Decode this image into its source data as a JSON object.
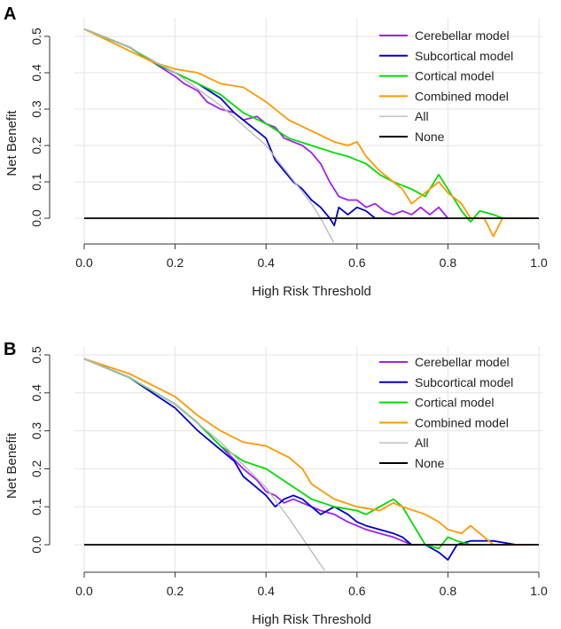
{
  "chart_data": [
    {
      "panel": "A",
      "type": "line",
      "title": "",
      "xlabel": "High Risk Threshold",
      "ylabel": "Net Benefit",
      "xlim": [
        0.0,
        1.0
      ],
      "ylim": [
        -0.07,
        0.52
      ],
      "xticks": [
        "0.0",
        "0.2",
        "0.4",
        "0.6",
        "0.8",
        "1.0"
      ],
      "yticks": [
        "0.0",
        "0.1",
        "0.2",
        "0.3",
        "0.4",
        "0.5"
      ],
      "grid": true,
      "legend_position": "top-right",
      "series": [
        {
          "name": "Cerebellar model",
          "color": "#a020f0",
          "x": [
            0,
            0.1,
            0.15,
            0.2,
            0.22,
            0.25,
            0.27,
            0.3,
            0.33,
            0.35,
            0.38,
            0.4,
            0.42,
            0.44,
            0.46,
            0.48,
            0.5,
            0.52,
            0.54,
            0.56,
            0.58,
            0.6,
            0.62,
            0.64,
            0.66,
            0.68,
            0.7,
            0.72,
            0.74,
            0.76,
            0.78,
            0.8
          ],
          "y": [
            0.52,
            0.47,
            0.43,
            0.39,
            0.37,
            0.35,
            0.32,
            0.3,
            0.29,
            0.27,
            0.28,
            0.26,
            0.25,
            0.22,
            0.21,
            0.2,
            0.18,
            0.15,
            0.1,
            0.06,
            0.05,
            0.05,
            0.03,
            0.04,
            0.02,
            0.01,
            0.02,
            0.01,
            0.03,
            0.01,
            0.03,
            0.0
          ]
        },
        {
          "name": "Subcortical model",
          "color": "#0000cc",
          "x": [
            0,
            0.1,
            0.15,
            0.2,
            0.25,
            0.3,
            0.33,
            0.36,
            0.38,
            0.4,
            0.42,
            0.44,
            0.46,
            0.48,
            0.5,
            0.52,
            0.54,
            0.55,
            0.56,
            0.58,
            0.6,
            0.62,
            0.64,
            0.66,
            0.7,
            0.8
          ],
          "y": [
            0.52,
            0.47,
            0.43,
            0.4,
            0.37,
            0.33,
            0.29,
            0.26,
            0.24,
            0.22,
            0.16,
            0.13,
            0.1,
            0.08,
            0.05,
            0.03,
            0.0,
            -0.02,
            0.03,
            0.01,
            0.03,
            0.02,
            0.0,
            0.0,
            0.0,
            0.0
          ]
        },
        {
          "name": "Cortical model",
          "color": "#00dd00",
          "x": [
            0,
            0.1,
            0.15,
            0.2,
            0.25,
            0.3,
            0.35,
            0.4,
            0.45,
            0.5,
            0.55,
            0.58,
            0.6,
            0.62,
            0.65,
            0.68,
            0.7,
            0.72,
            0.75,
            0.78,
            0.8,
            0.83,
            0.85,
            0.87,
            0.9,
            0.92
          ],
          "y": [
            0.52,
            0.47,
            0.43,
            0.4,
            0.37,
            0.34,
            0.29,
            0.26,
            0.22,
            0.2,
            0.18,
            0.17,
            0.16,
            0.15,
            0.12,
            0.1,
            0.09,
            0.08,
            0.06,
            0.12,
            0.08,
            0.02,
            -0.01,
            0.02,
            0.01,
            0.0
          ]
        },
        {
          "name": "Combined model",
          "color": "#ff9900",
          "x": [
            0,
            0.1,
            0.15,
            0.2,
            0.25,
            0.3,
            0.35,
            0.4,
            0.45,
            0.5,
            0.55,
            0.58,
            0.6,
            0.62,
            0.65,
            0.68,
            0.7,
            0.72,
            0.75,
            0.78,
            0.8,
            0.83,
            0.85,
            0.88,
            0.9,
            0.92,
            0.95,
            0.99
          ],
          "y": [
            0.52,
            0.46,
            0.43,
            0.41,
            0.4,
            0.37,
            0.36,
            0.32,
            0.27,
            0.24,
            0.21,
            0.2,
            0.21,
            0.17,
            0.13,
            0.1,
            0.08,
            0.04,
            0.07,
            0.1,
            0.07,
            0.04,
            0.0,
            0.0,
            -0.05,
            0.0,
            0.0,
            0.0
          ]
        },
        {
          "name": "All",
          "color": "#bbbbbb",
          "x": [
            0,
            0.1,
            0.2,
            0.3,
            0.4,
            0.45,
            0.5,
            0.52,
            0.55
          ],
          "y": [
            0.52,
            0.47,
            0.4,
            0.31,
            0.2,
            0.12,
            0.04,
            0.0,
            -0.07
          ]
        },
        {
          "name": "None",
          "color": "#000000",
          "x": [
            0,
            1.0
          ],
          "y": [
            0,
            0
          ]
        }
      ]
    },
    {
      "panel": "B",
      "type": "line",
      "title": "",
      "xlabel": "High Risk Threshold",
      "ylabel": "Net Benefit",
      "xlim": [
        0.0,
        1.0
      ],
      "ylim": [
        -0.07,
        0.5
      ],
      "xticks": [
        "0.0",
        "0.2",
        "0.4",
        "0.6",
        "0.8",
        "1.0"
      ],
      "yticks": [
        "0.0",
        "0.1",
        "0.2",
        "0.3",
        "0.4",
        "0.5"
      ],
      "grid": true,
      "legend_position": "top-right",
      "series": [
        {
          "name": "Cerebellar model",
          "color": "#a020f0",
          "x": [
            0,
            0.1,
            0.2,
            0.25,
            0.3,
            0.35,
            0.38,
            0.4,
            0.42,
            0.44,
            0.46,
            0.48,
            0.5,
            0.52,
            0.55,
            0.58,
            0.6,
            0.62,
            0.65,
            0.68,
            0.7,
            0.72,
            0.75
          ],
          "y": [
            0.49,
            0.44,
            0.37,
            0.32,
            0.26,
            0.2,
            0.17,
            0.14,
            0.13,
            0.11,
            0.12,
            0.11,
            0.1,
            0.09,
            0.08,
            0.06,
            0.05,
            0.04,
            0.03,
            0.02,
            0.01,
            0.0,
            0.0
          ]
        },
        {
          "name": "Subcortical model",
          "color": "#0000cc",
          "x": [
            0,
            0.1,
            0.2,
            0.25,
            0.3,
            0.33,
            0.35,
            0.38,
            0.4,
            0.42,
            0.44,
            0.46,
            0.48,
            0.5,
            0.52,
            0.55,
            0.58,
            0.6,
            0.62,
            0.65,
            0.68,
            0.7,
            0.72,
            0.75,
            0.78,
            0.8,
            0.82,
            0.85,
            0.9,
            0.95
          ],
          "y": [
            0.49,
            0.44,
            0.36,
            0.3,
            0.25,
            0.22,
            0.18,
            0.15,
            0.13,
            0.1,
            0.12,
            0.13,
            0.12,
            0.1,
            0.08,
            0.1,
            0.08,
            0.06,
            0.05,
            0.04,
            0.03,
            0.02,
            0.0,
            0.0,
            -0.02,
            -0.04,
            0.0,
            0.01,
            0.01,
            0.0
          ]
        },
        {
          "name": "Cortical model",
          "color": "#00dd00",
          "x": [
            0,
            0.1,
            0.2,
            0.25,
            0.3,
            0.35,
            0.4,
            0.45,
            0.5,
            0.55,
            0.6,
            0.62,
            0.65,
            0.68,
            0.7,
            0.72,
            0.75,
            0.78,
            0.8,
            0.82,
            0.85,
            0.88
          ],
          "y": [
            0.49,
            0.44,
            0.37,
            0.32,
            0.26,
            0.22,
            0.2,
            0.16,
            0.12,
            0.1,
            0.09,
            0.08,
            0.1,
            0.12,
            0.1,
            0.06,
            0.0,
            -0.01,
            0.02,
            0.01,
            0.0,
            0.0
          ]
        },
        {
          "name": "Combined model",
          "color": "#ff9900",
          "x": [
            0,
            0.1,
            0.2,
            0.25,
            0.3,
            0.35,
            0.4,
            0.45,
            0.48,
            0.5,
            0.55,
            0.6,
            0.65,
            0.68,
            0.7,
            0.75,
            0.78,
            0.8,
            0.83,
            0.85,
            0.88,
            0.9,
            0.92,
            0.95,
            0.99
          ],
          "y": [
            0.49,
            0.45,
            0.39,
            0.34,
            0.3,
            0.27,
            0.26,
            0.23,
            0.2,
            0.16,
            0.12,
            0.1,
            0.09,
            0.11,
            0.1,
            0.08,
            0.06,
            0.04,
            0.03,
            0.05,
            0.02,
            0.0,
            0.0,
            0.0,
            0.0
          ]
        },
        {
          "name": "All",
          "color": "#bbbbbb",
          "x": [
            0,
            0.1,
            0.2,
            0.3,
            0.4,
            0.45,
            0.49,
            0.53
          ],
          "y": [
            0.49,
            0.44,
            0.37,
            0.27,
            0.15,
            0.07,
            0.0,
            -0.07
          ]
        },
        {
          "name": "None",
          "color": "#000000",
          "x": [
            0,
            1.0
          ],
          "y": [
            0,
            0
          ]
        }
      ]
    }
  ]
}
